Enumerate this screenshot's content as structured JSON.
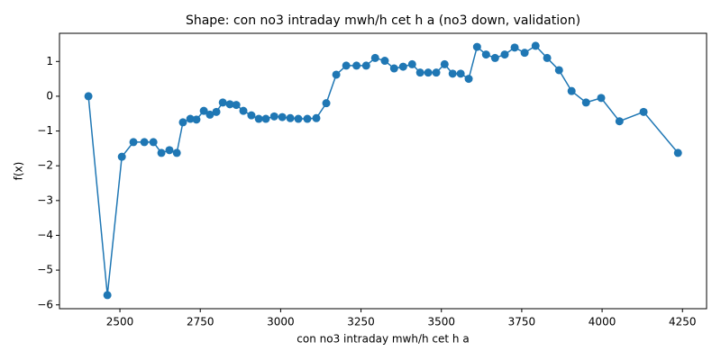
{
  "chart_data": {
    "type": "line",
    "title": "Shape: con no3 intraday mwh/h cet h a (no3 down, validation)",
    "x_label": "con no3 intraday mwh/h cet h a",
    "y_label": "f(x)",
    "color": "#1f77b4",
    "x": [
      2402,
      2461,
      2506,
      2542,
      2576,
      2604,
      2629,
      2654,
      2677,
      2696,
      2719,
      2738,
      2761,
      2780,
      2800,
      2820,
      2842,
      2862,
      2884,
      2909,
      2932,
      2954,
      2980,
      3005,
      3030,
      3055,
      3083,
      3111,
      3142,
      3173,
      3204,
      3236,
      3266,
      3294,
      3324,
      3353,
      3381,
      3409,
      3434,
      3459,
      3484,
      3510,
      3535,
      3560,
      3585,
      3611,
      3639,
      3667,
      3697,
      3728,
      3759,
      3793,
      3829,
      3866,
      3905,
      3950,
      3997,
      4054,
      4129,
      4236
    ],
    "values": [
      0,
      -5.72,
      -1.74,
      -1.32,
      -1.32,
      -1.32,
      -1.63,
      -1.55,
      -1.63,
      -0.75,
      -0.65,
      -0.67,
      -0.42,
      -0.53,
      -0.45,
      -0.18,
      -0.23,
      -0.25,
      -0.42,
      -0.55,
      -0.65,
      -0.65,
      -0.58,
      -0.6,
      -0.63,
      -0.65,
      -0.65,
      -0.63,
      -0.2,
      0.62,
      0.88,
      0.88,
      0.88,
      1.1,
      1.02,
      0.8,
      0.85,
      0.92,
      0.68,
      0.68,
      0.68,
      0.92,
      0.65,
      0.65,
      0.5,
      1.42,
      1.2,
      1.1,
      1.2,
      1.4,
      1.25,
      1.45,
      1.1,
      0.75,
      0.15,
      -0.18,
      -0.05,
      -0.72,
      -0.45,
      -1.63
    ],
    "xlim": [
      2312,
      4325
    ],
    "ylim": [
      -6.11,
      1.81
    ],
    "xticks": [
      2500,
      2750,
      3000,
      3250,
      3500,
      3750,
      4000,
      4250
    ],
    "yticks": [
      {
        "value": -6,
        "label": "−6"
      },
      {
        "value": -5,
        "label": "−5"
      },
      {
        "value": -4,
        "label": "−4"
      },
      {
        "value": -3,
        "label": "−3"
      },
      {
        "value": -2,
        "label": "−2"
      },
      {
        "value": -1,
        "label": "−1"
      },
      0,
      1
    ]
  }
}
